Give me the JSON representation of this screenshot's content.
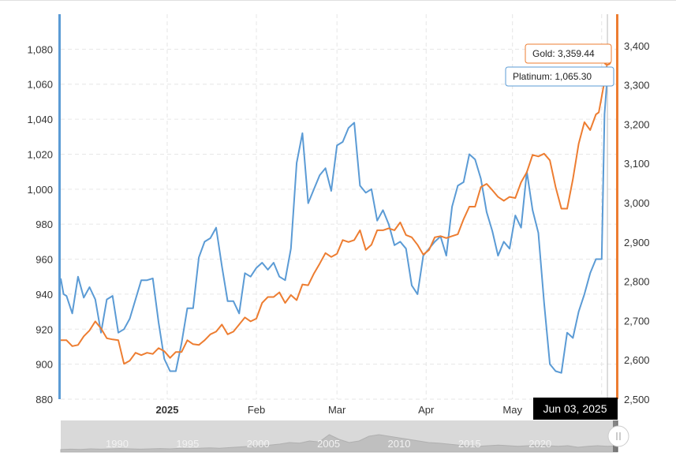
{
  "chart_data": {
    "type": "line",
    "title": "",
    "xlabel": "",
    "ylabel": "",
    "x_ticks": [
      "2025",
      "Feb",
      "Mar",
      "Apr",
      "May"
    ],
    "x_tick_partial": "n",
    "y_left": {
      "ticks": [
        "880",
        "900",
        "920",
        "940",
        "960",
        "980",
        "1,000",
        "1,020",
        "1,040",
        "1,060",
        "1,080"
      ],
      "range": [
        880,
        1100
      ]
    },
    "y_right": {
      "ticks": [
        "2,500",
        "2,600",
        "2,700",
        "2,800",
        "2,900",
        "3,000",
        "3,100",
        "3,200",
        "3,300",
        "3,400"
      ],
      "range": [
        2500,
        3480
      ]
    },
    "x_range": [
      "2024-11-25",
      "2025-06-06"
    ],
    "legend": "none",
    "grid": true,
    "series": [
      {
        "name": "Platinum",
        "axis": "left",
        "color": "#5b9bd5",
        "points": [
          [
            "2024-11-25",
            949
          ],
          [
            "2024-11-26",
            940
          ],
          [
            "2024-11-27",
            939
          ],
          [
            "2024-11-29",
            929
          ],
          [
            "2024-12-01",
            950
          ],
          [
            "2024-12-03",
            938
          ],
          [
            "2024-12-05",
            944
          ],
          [
            "2024-12-07",
            937
          ],
          [
            "2024-12-09",
            918
          ],
          [
            "2024-12-11",
            937
          ],
          [
            "2024-12-13",
            939
          ],
          [
            "2024-12-15",
            918
          ],
          [
            "2024-12-17",
            920
          ],
          [
            "2024-12-19",
            926
          ],
          [
            "2024-12-21",
            937
          ],
          [
            "2024-12-23",
            948
          ],
          [
            "2024-12-25",
            948
          ],
          [
            "2024-12-27",
            949
          ],
          [
            "2024-12-29",
            924
          ],
          [
            "2024-12-31",
            903
          ],
          [
            "2025-01-02",
            896
          ],
          [
            "2025-01-04",
            896
          ],
          [
            "2025-01-06",
            912
          ],
          [
            "2025-01-08",
            932
          ],
          [
            "2025-01-10",
            932
          ],
          [
            "2025-01-12",
            961
          ],
          [
            "2025-01-14",
            970
          ],
          [
            "2025-01-16",
            972
          ],
          [
            "2025-01-18",
            978
          ],
          [
            "2025-01-20",
            956
          ],
          [
            "2025-01-22",
            936
          ],
          [
            "2025-01-24",
            936
          ],
          [
            "2025-01-26",
            929
          ],
          [
            "2025-01-28",
            952
          ],
          [
            "2025-01-30",
            950
          ],
          [
            "2025-02-01",
            955
          ],
          [
            "2025-02-03",
            958
          ],
          [
            "2025-02-05",
            954
          ],
          [
            "2025-02-07",
            958
          ],
          [
            "2025-02-09",
            950
          ],
          [
            "2025-02-11",
            948
          ],
          [
            "2025-02-13",
            966
          ],
          [
            "2025-02-15",
            1015
          ],
          [
            "2025-02-17",
            1032
          ],
          [
            "2025-02-19",
            992
          ],
          [
            "2025-02-21",
            1000
          ],
          [
            "2025-02-23",
            1008
          ],
          [
            "2025-02-25",
            1012
          ],
          [
            "2025-02-27",
            999
          ],
          [
            "2025-03-01",
            1025
          ],
          [
            "2025-03-03",
            1027
          ],
          [
            "2025-03-05",
            1035
          ],
          [
            "2025-03-07",
            1038
          ],
          [
            "2025-03-09",
            1002
          ],
          [
            "2025-03-11",
            998
          ],
          [
            "2025-03-13",
            1000
          ],
          [
            "2025-03-15",
            982
          ],
          [
            "2025-03-17",
            988
          ],
          [
            "2025-03-19",
            980
          ],
          [
            "2025-03-21",
            968
          ],
          [
            "2025-03-23",
            970
          ],
          [
            "2025-03-25",
            966
          ],
          [
            "2025-03-27",
            945
          ],
          [
            "2025-03-29",
            940
          ],
          [
            "2025-03-31",
            962
          ],
          [
            "2025-04-02",
            966
          ],
          [
            "2025-04-04",
            970
          ],
          [
            "2025-04-06",
            973
          ],
          [
            "2025-04-08",
            962
          ],
          [
            "2025-04-10",
            990
          ],
          [
            "2025-04-12",
            1002
          ],
          [
            "2025-04-14",
            1004
          ],
          [
            "2025-04-16",
            1020
          ],
          [
            "2025-04-18",
            1017
          ],
          [
            "2025-04-20",
            1006
          ],
          [
            "2025-04-22",
            987
          ],
          [
            "2025-04-24",
            976
          ],
          [
            "2025-04-26",
            962
          ],
          [
            "2025-04-28",
            970
          ],
          [
            "2025-04-30",
            966
          ],
          [
            "2025-05-02",
            985
          ],
          [
            "2025-05-04",
            978
          ],
          [
            "2025-05-06",
            1010
          ],
          [
            "2025-05-08",
            988
          ],
          [
            "2025-05-10",
            975
          ],
          [
            "2025-05-12",
            935
          ],
          [
            "2025-05-14",
            900
          ],
          [
            "2025-05-16",
            896
          ],
          [
            "2025-05-18",
            895
          ],
          [
            "2025-05-20",
            918
          ],
          [
            "2025-05-22",
            915
          ],
          [
            "2025-05-24",
            930
          ],
          [
            "2025-05-26",
            940
          ],
          [
            "2025-05-28",
            952
          ],
          [
            "2025-05-30",
            960
          ],
          [
            "2025-05-31",
            960
          ],
          [
            "2025-06-01",
            960
          ],
          [
            "2025-06-02",
            1043
          ],
          [
            "2025-06-03",
            1065.3
          ]
        ]
      },
      {
        "name": "Gold",
        "axis": "right",
        "color": "#ed7d31",
        "points": [
          [
            "2024-11-25",
            2650
          ],
          [
            "2024-11-27",
            2650
          ],
          [
            "2024-11-29",
            2635
          ],
          [
            "2024-12-01",
            2638
          ],
          [
            "2024-12-03",
            2660
          ],
          [
            "2024-12-05",
            2675
          ],
          [
            "2024-12-07",
            2698
          ],
          [
            "2024-12-09",
            2680
          ],
          [
            "2024-12-11",
            2655
          ],
          [
            "2024-12-13",
            2652
          ],
          [
            "2024-12-15",
            2650
          ],
          [
            "2024-12-17",
            2590
          ],
          [
            "2024-12-19",
            2598
          ],
          [
            "2024-12-21",
            2618
          ],
          [
            "2024-12-23",
            2612
          ],
          [
            "2024-12-25",
            2618
          ],
          [
            "2024-12-27",
            2615
          ],
          [
            "2024-12-29",
            2630
          ],
          [
            "2024-12-31",
            2622
          ],
          [
            "2025-01-02",
            2605
          ],
          [
            "2025-01-04",
            2620
          ],
          [
            "2025-01-06",
            2620
          ],
          [
            "2025-01-08",
            2650
          ],
          [
            "2025-01-10",
            2640
          ],
          [
            "2025-01-12",
            2638
          ],
          [
            "2025-01-14",
            2650
          ],
          [
            "2025-01-16",
            2665
          ],
          [
            "2025-01-18",
            2672
          ],
          [
            "2025-01-20",
            2690
          ],
          [
            "2025-01-22",
            2665
          ],
          [
            "2025-01-24",
            2672
          ],
          [
            "2025-01-26",
            2690
          ],
          [
            "2025-01-28",
            2708
          ],
          [
            "2025-01-30",
            2698
          ],
          [
            "2025-02-01",
            2705
          ],
          [
            "2025-02-03",
            2745
          ],
          [
            "2025-02-05",
            2760
          ],
          [
            "2025-02-07",
            2760
          ],
          [
            "2025-02-09",
            2772
          ],
          [
            "2025-02-11",
            2745
          ],
          [
            "2025-02-13",
            2765
          ],
          [
            "2025-02-15",
            2752
          ],
          [
            "2025-02-17",
            2792
          ],
          [
            "2025-02-19",
            2790
          ],
          [
            "2025-02-21",
            2820
          ],
          [
            "2025-02-23",
            2845
          ],
          [
            "2025-02-25",
            2872
          ],
          [
            "2025-02-27",
            2862
          ],
          [
            "2025-03-01",
            2870
          ],
          [
            "2025-03-03",
            2905
          ],
          [
            "2025-03-05",
            2900
          ],
          [
            "2025-03-07",
            2905
          ],
          [
            "2025-03-09",
            2930
          ],
          [
            "2025-03-11",
            2880
          ],
          [
            "2025-03-13",
            2893
          ],
          [
            "2025-03-15",
            2930
          ],
          [
            "2025-03-17",
            2930
          ],
          [
            "2025-03-19",
            2935
          ],
          [
            "2025-03-21",
            2930
          ],
          [
            "2025-03-23",
            2950
          ],
          [
            "2025-03-25",
            2918
          ],
          [
            "2025-03-27",
            2912
          ],
          [
            "2025-03-29",
            2893
          ],
          [
            "2025-03-31",
            2868
          ],
          [
            "2025-04-02",
            2880
          ],
          [
            "2025-04-04",
            2912
          ],
          [
            "2025-04-06",
            2915
          ],
          [
            "2025-04-08",
            2910
          ],
          [
            "2025-04-10",
            2915
          ],
          [
            "2025-04-12",
            2920
          ],
          [
            "2025-04-14",
            2958
          ],
          [
            "2025-04-16",
            2990
          ],
          [
            "2025-04-18",
            2990
          ],
          [
            "2025-04-20",
            3040
          ],
          [
            "2025-04-22",
            3048
          ],
          [
            "2025-04-24",
            3032
          ],
          [
            "2025-04-26",
            3015
          ],
          [
            "2025-04-28",
            3005
          ],
          [
            "2025-04-30",
            3015
          ],
          [
            "2025-05-02",
            3012
          ],
          [
            "2025-05-04",
            3052
          ],
          [
            "2025-05-06",
            3078
          ],
          [
            "2025-05-08",
            3122
          ],
          [
            "2025-05-10",
            3118
          ],
          [
            "2025-05-12",
            3125
          ],
          [
            "2025-05-14",
            3108
          ],
          [
            "2025-05-16",
            3040
          ],
          [
            "2025-05-18",
            2985
          ],
          [
            "2025-05-20",
            2985
          ],
          [
            "2025-05-22",
            3060
          ],
          [
            "2025-05-24",
            3150
          ],
          [
            "2025-05-26",
            3205
          ],
          [
            "2025-05-28",
            3185
          ],
          [
            "2025-05-30",
            3225
          ],
          [
            "2025-05-31",
            3230
          ],
          [
            "2025-06-01",
            3270
          ],
          [
            "2025-06-02",
            3310
          ],
          [
            "2025-06-03",
            3359.44
          ]
        ]
      }
    ],
    "tooltip": {
      "date": "Jun 03, 2025",
      "gold_label": "Gold: 3,359.44",
      "platinum_label": "Platinum: 1,065.30"
    },
    "navigator": {
      "labels": [
        "1990",
        "1995",
        "2000",
        "2005",
        "2010",
        "2015",
        "2020"
      ]
    }
  },
  "colors": {
    "platinum": "#5b9bd5",
    "gold": "#ed7d31",
    "grid": "#e6e6e6",
    "navigator_bg": "#d9d9d9",
    "navigator_series": "#bfbfbf",
    "date_flag_bg": "#000000"
  },
  "icons": {
    "navigator_handle": "drag-handle-icon"
  }
}
